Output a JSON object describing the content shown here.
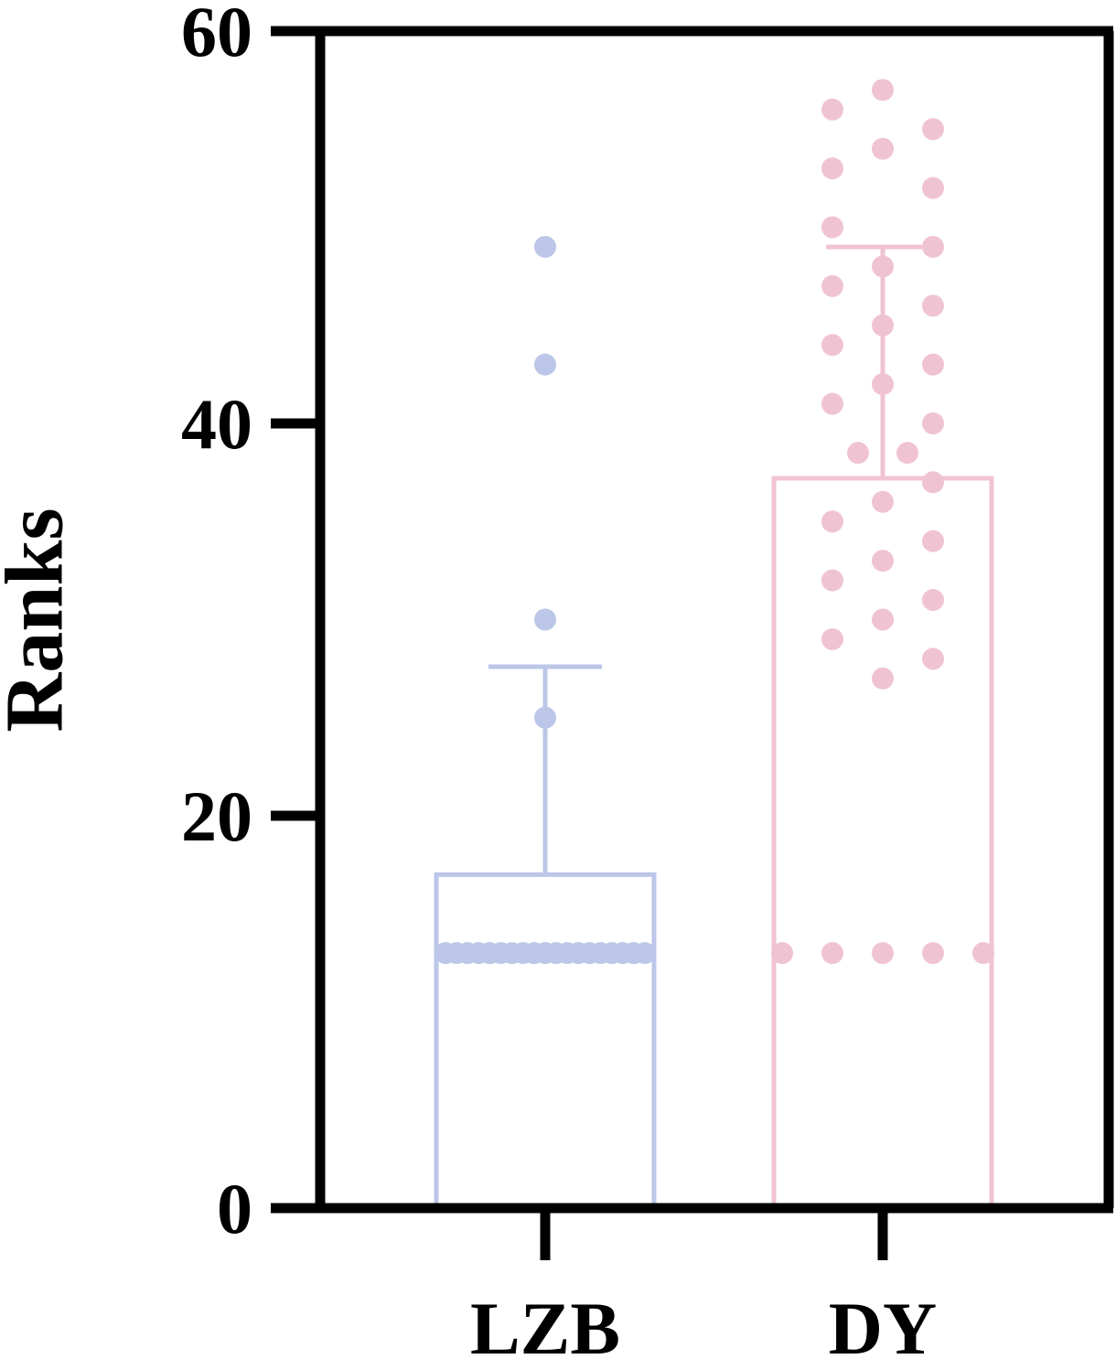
{
  "chart_data": {
    "type": "bar",
    "ylabel": "Ranks",
    "xlabel": "",
    "ylim": [
      0,
      60
    ],
    "yticks": [
      "0",
      "20",
      "40",
      "60"
    ],
    "yticks_values": [
      0,
      20,
      40,
      60
    ],
    "categories": [
      "LZB",
      "DY"
    ],
    "colors": {
      "LZB": "#bcc6e8",
      "DY": "#f0c3d3",
      "axis": "#000000"
    },
    "bars": [
      {
        "category": "LZB",
        "mean": 17,
        "error_upper": 27.6,
        "points": [
          49,
          43,
          30,
          25,
          13,
          13,
          13,
          13,
          13,
          13,
          13,
          13,
          13,
          13,
          13,
          13,
          13,
          13,
          13,
          13,
          13,
          13,
          13
        ]
      },
      {
        "category": "DY",
        "mean": 37.2,
        "error_upper": 49,
        "points": [
          57,
          56,
          55,
          54,
          53,
          52,
          50,
          49,
          48,
          47,
          46,
          45,
          44,
          43,
          42,
          41,
          40,
          38.5,
          38.5,
          37,
          36,
          35,
          34,
          33,
          32,
          31,
          30,
          29,
          28,
          27,
          13,
          13,
          13,
          13,
          13
        ]
      }
    ]
  }
}
